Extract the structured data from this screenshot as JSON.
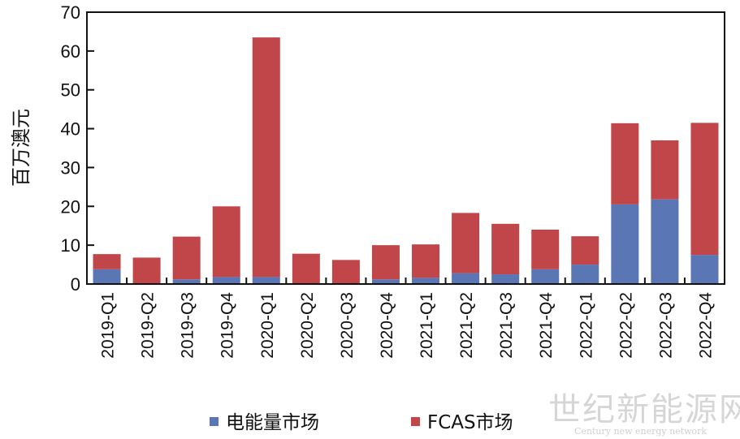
{
  "chart_data": {
    "type": "bar",
    "stacked": true,
    "categories": [
      "2019-Q1",
      "2019-Q2",
      "2019-Q3",
      "2019-Q4",
      "2020-Q1",
      "2020-Q2",
      "2020-Q3",
      "2020-Q4",
      "2021-Q1",
      "2021-Q2",
      "2021-Q3",
      "2021-Q4",
      "2022-Q1",
      "2022-Q2",
      "2022-Q3",
      "2022-Q4"
    ],
    "series": [
      {
        "name": "电能量市场",
        "color": "#5b76b5",
        "values": [
          3.8,
          0.2,
          1.2,
          1.8,
          1.8,
          0.2,
          0.2,
          1.2,
          1.6,
          2.8,
          2.5,
          3.8,
          5.0,
          20.5,
          21.8,
          7.5
        ]
      },
      {
        "name": "FCAS市场",
        "color": "#c0464a",
        "values": [
          3.9,
          6.6,
          11.0,
          18.2,
          61.7,
          7.6,
          6.0,
          8.8,
          8.6,
          15.5,
          13.0,
          10.2,
          7.3,
          20.9,
          15.2,
          34.0
        ]
      }
    ],
    "ylabel": "百万澳元",
    "xlabel": "",
    "ylim": [
      0,
      70
    ],
    "yticks": [
      0,
      10,
      20,
      30,
      40,
      50,
      60,
      70
    ],
    "grid": false,
    "legend_position": "bottom"
  },
  "watermark": {
    "main": "世纪新能源网",
    "sub": "Century new energy network"
  }
}
